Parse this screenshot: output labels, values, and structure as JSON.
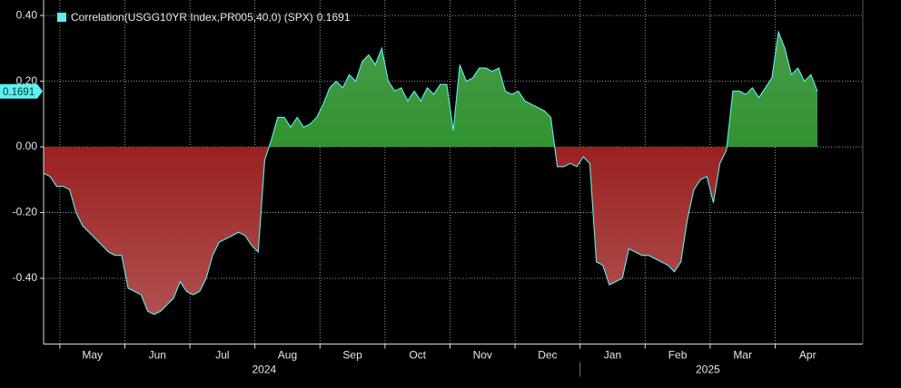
{
  "chart_data": {
    "type": "area",
    "categories": [
      null,
      null,
      null,
      "May",
      null,
      null,
      null,
      null,
      null,
      null,
      null,
      null,
      null,
      "Jun",
      null,
      null,
      null,
      null,
      null,
      null,
      null,
      null,
      null,
      "Jul",
      null,
      null,
      null,
      null,
      null,
      null,
      null,
      null,
      null,
      "Aug",
      null,
      null,
      null,
      null,
      null,
      null,
      null,
      null,
      null,
      "Sep",
      null,
      null,
      null,
      null,
      null,
      null,
      null,
      null,
      null,
      "Oct",
      null,
      null,
      null,
      null,
      null,
      null,
      null,
      null,
      null,
      "Nov",
      null,
      null,
      null,
      null,
      null,
      null,
      null,
      null,
      null,
      "Dec",
      null,
      null,
      null,
      null,
      null,
      null,
      null,
      null,
      null,
      "Jan",
      null,
      null,
      null,
      null,
      null,
      null,
      null,
      null,
      null,
      "Feb",
      null,
      null,
      null,
      null,
      null,
      null,
      null,
      null,
      null,
      "Mar",
      null,
      null,
      null,
      null,
      null,
      null,
      null,
      null,
      null,
      "Apr",
      null,
      null,
      null,
      null,
      null,
      null
    ],
    "x_group_labels": [
      "2024",
      "2025"
    ],
    "series": [
      {
        "name": "Correlation(USGG10YR Index,PR005,40,0) (SPX)",
        "color": "#5ff0f0",
        "values": [
          -0.08,
          -0.09,
          -0.12,
          -0.12,
          -0.13,
          -0.2,
          -0.24,
          -0.26,
          -0.28,
          -0.3,
          -0.32,
          -0.33,
          -0.33,
          -0.43,
          -0.44,
          -0.45,
          -0.5,
          -0.51,
          -0.5,
          -0.48,
          -0.46,
          -0.41,
          -0.44,
          -0.45,
          -0.44,
          -0.4,
          -0.33,
          -0.29,
          -0.28,
          -0.27,
          -0.26,
          -0.27,
          -0.3,
          -0.32,
          -0.04,
          0.02,
          0.09,
          0.09,
          0.06,
          0.09,
          0.06,
          0.07,
          0.09,
          0.13,
          0.18,
          0.2,
          0.18,
          0.22,
          0.2,
          0.26,
          0.28,
          0.25,
          0.3,
          0.2,
          0.17,
          0.18,
          0.14,
          0.17,
          0.14,
          0.18,
          0.16,
          0.19,
          0.19,
          0.05,
          0.25,
          0.2,
          0.21,
          0.24,
          0.24,
          0.23,
          0.24,
          0.17,
          0.16,
          0.17,
          0.14,
          0.13,
          0.12,
          0.11,
          0.09,
          -0.06,
          -0.06,
          -0.05,
          -0.06,
          -0.03,
          -0.05,
          -0.35,
          -0.36,
          -0.42,
          -0.41,
          -0.4,
          -0.31,
          -0.32,
          -0.33,
          -0.33,
          -0.34,
          -0.35,
          -0.36,
          -0.38,
          -0.35,
          -0.22,
          -0.13,
          -0.1,
          -0.09,
          -0.17,
          -0.05,
          -0.01,
          0.17,
          0.17,
          0.16,
          0.18,
          0.15,
          0.18,
          0.21,
          0.35,
          0.3,
          0.22,
          0.24,
          0.2,
          0.22,
          0.1691
        ]
      }
    ],
    "positive_color": "#0a8a0a",
    "negative_color": "#8b0000",
    "ylim": [
      -0.6,
      0.45
    ],
    "yticks": [
      {
        "value": 0.4,
        "label": "0.40"
      },
      {
        "value": 0.2,
        "label": "0.20"
      },
      {
        "value": 0,
        "label": "0.00"
      },
      {
        "value": -0.2,
        "label": "-0.20"
      },
      {
        "value": -0.4,
        "label": "-0.40"
      }
    ],
    "grid": true,
    "legend": "top-left"
  }
}
